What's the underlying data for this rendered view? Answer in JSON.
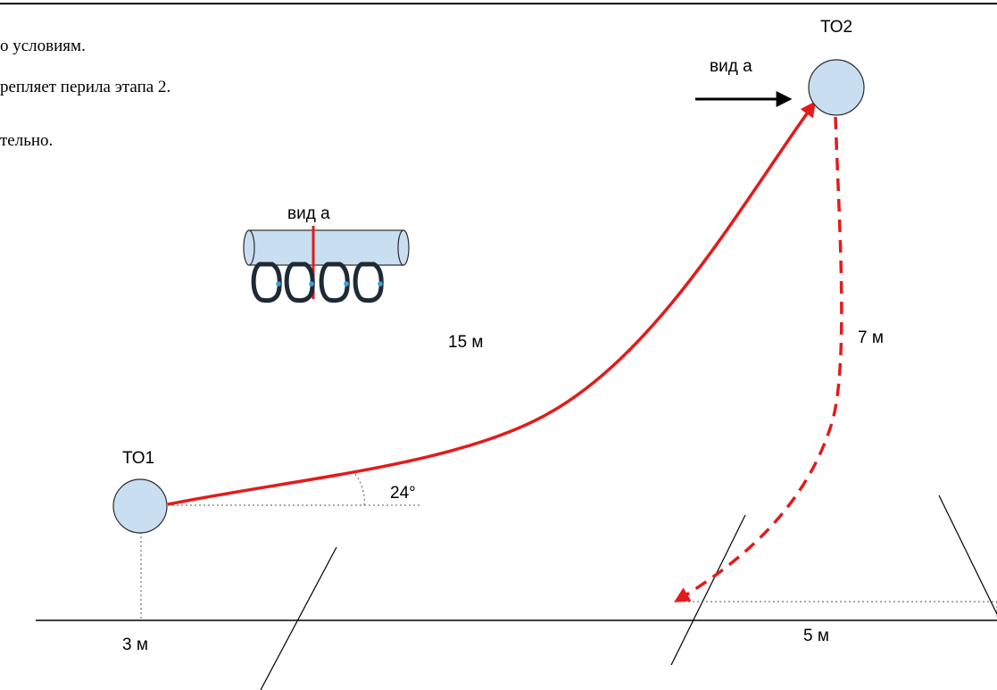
{
  "text_fragments": [
    "о условиям.",
    "репляет перила этапа 2.",
    "тельно."
  ],
  "labels": {
    "to1": "ТО1",
    "to2": "ТО2",
    "view_a_top": "вид а",
    "view_a_inset": "вид а",
    "length_15": "15 м",
    "length_7": "7 м",
    "angle": "24°",
    "dist_3": "3 м",
    "dist_5": "5 м"
  },
  "colors": {
    "rope": "#e31b1b",
    "node_fill": "#c9def1",
    "node_stroke": "#2b2b2b",
    "carabiner": "#1e2a36",
    "carabiner_accent": "#3aa0d8",
    "guide": "#555555"
  }
}
